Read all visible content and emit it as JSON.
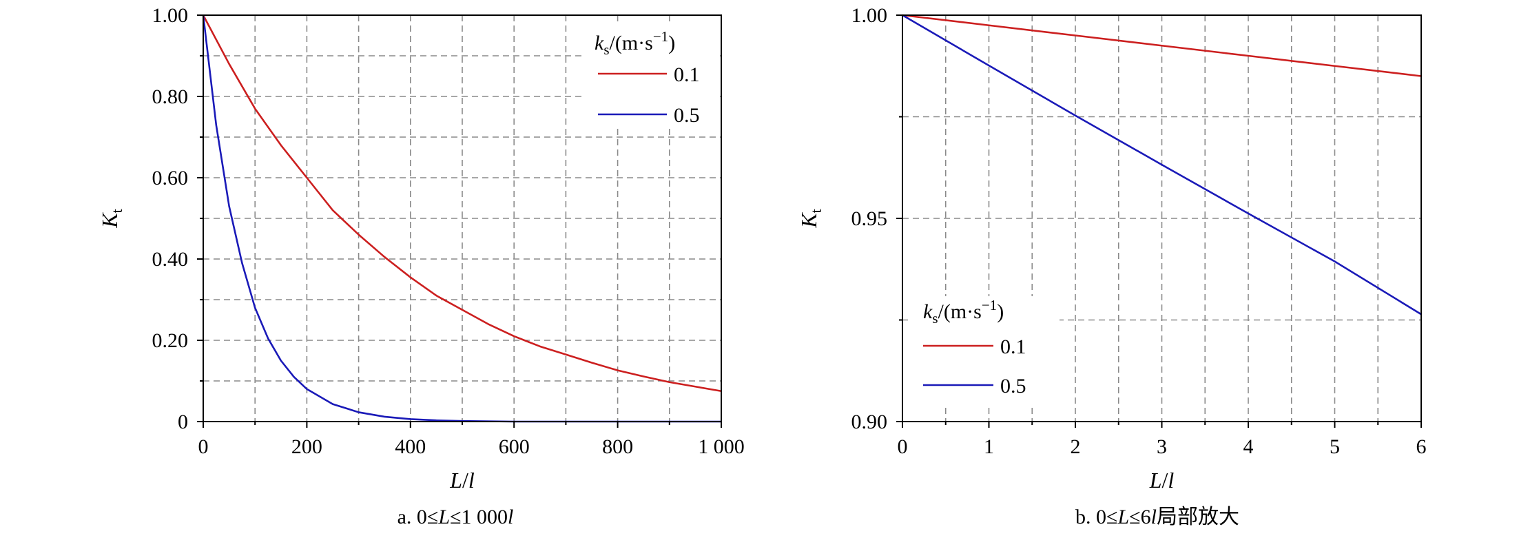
{
  "chart_data": [
    {
      "type": "line",
      "caption": {
        "prefix": "a. 0≤",
        "var": "L",
        "mid": "≤1 000",
        "var2": "l",
        "suffix": ""
      },
      "xlabel": {
        "main": "L",
        "sep": "/",
        "var": "l"
      },
      "ylabel": {
        "main": "K",
        "sub": "t"
      },
      "xlim": [
        0,
        1000
      ],
      "ylim": [
        0,
        1
      ],
      "xticks": [
        0,
        200,
        400,
        600,
        800,
        1000
      ],
      "xtick_labels": [
        "0",
        "200",
        "400",
        "600",
        "800",
        "1 000"
      ],
      "x_minor_ticks": [
        100,
        300,
        500,
        700,
        900
      ],
      "yticks": [
        0,
        0.2,
        0.4,
        0.6,
        0.8,
        1.0
      ],
      "ytick_labels": [
        "0",
        "0.20",
        "0.40",
        "0.60",
        "0.80",
        "1.00"
      ],
      "y_minor_ticks": [
        0.1,
        0.3,
        0.5,
        0.7,
        0.9
      ],
      "grid": true,
      "legend": {
        "title_main": "k",
        "title_sub": "s",
        "title_rest": "/(m·s",
        "title_sup": "−1",
        "title_close": ")",
        "position": "top-right"
      },
      "series": [
        {
          "name": "0.1",
          "color": "#cc1f1f",
          "x": [
            0,
            50,
            100,
            150,
            200,
            250,
            300,
            350,
            400,
            450,
            500,
            550,
            600,
            650,
            700,
            750,
            800,
            850,
            900,
            950,
            1000
          ],
          "y": [
            1.0,
            0.88,
            0.77,
            0.68,
            0.6,
            0.52,
            0.46,
            0.405,
            0.355,
            0.31,
            0.275,
            0.24,
            0.21,
            0.185,
            0.165,
            0.145,
            0.126,
            0.111,
            0.097,
            0.086,
            0.075
          ]
        },
        {
          "name": "0.5",
          "color": "#1a1ab8",
          "x": [
            0,
            25,
            50,
            75,
            100,
            125,
            150,
            175,
            200,
            250,
            300,
            350,
            400,
            450,
            500,
            600,
            700,
            800,
            900,
            1000
          ],
          "y": [
            1.0,
            0.73,
            0.53,
            0.39,
            0.28,
            0.205,
            0.15,
            0.11,
            0.08,
            0.043,
            0.023,
            0.012,
            0.006,
            0.003,
            0.0015,
            0.0,
            0.0,
            0.0,
            0.0,
            0.0
          ]
        }
      ]
    },
    {
      "type": "line",
      "caption": {
        "prefix": "b. 0≤",
        "var": "L",
        "mid": "≤6",
        "var2": "l",
        "suffix": "局部放大"
      },
      "xlabel": {
        "main": "L",
        "sep": "/",
        "var": "l"
      },
      "ylabel": {
        "main": "K",
        "sub": "t"
      },
      "xlim": [
        0,
        6
      ],
      "ylim": [
        0.9,
        1.0
      ],
      "xticks": [
        0,
        1,
        2,
        3,
        4,
        5,
        6
      ],
      "xtick_labels": [
        "0",
        "1",
        "2",
        "3",
        "4",
        "5",
        "6"
      ],
      "x_minor_ticks": [
        0.5,
        1.5,
        2.5,
        3.5,
        4.5,
        5.5
      ],
      "yticks": [
        0.9,
        0.95,
        1.0
      ],
      "ytick_labels": [
        "0.90",
        "0.95",
        "1.00"
      ],
      "y_minor_ticks": [
        0.925,
        0.975
      ],
      "grid": true,
      "legend": {
        "title_main": "k",
        "title_sub": "s",
        "title_rest": "/(m·s",
        "title_sup": "−1",
        "title_close": ")",
        "position": "bottom-left"
      },
      "series": [
        {
          "name": "0.1",
          "color": "#cc1f1f",
          "x": [
            0,
            1,
            2,
            3,
            4,
            5,
            6
          ],
          "y": [
            1.0,
            0.9975,
            0.995,
            0.9925,
            0.99,
            0.9875,
            0.985
          ]
        },
        {
          "name": "0.5",
          "color": "#1a1ab8",
          "x": [
            0,
            1,
            2,
            3,
            4,
            5,
            6
          ],
          "y": [
            1.0,
            0.9876,
            0.9753,
            0.9632,
            0.9512,
            0.9394,
            0.9264
          ]
        }
      ]
    }
  ]
}
